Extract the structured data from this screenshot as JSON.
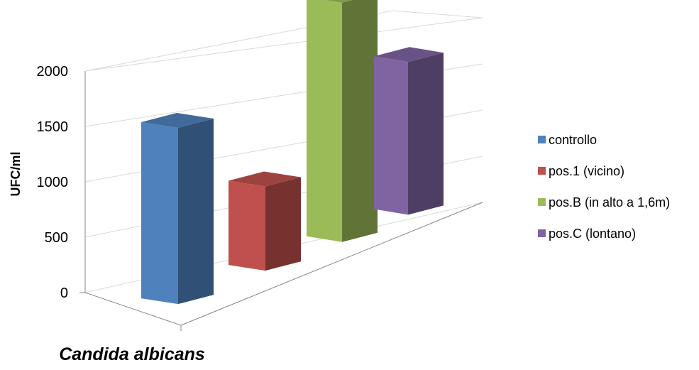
{
  "chart_data": {
    "type": "bar",
    "style": "3d-column",
    "categories": [
      "Candida albicans"
    ],
    "series": [
      {
        "name": "controllo",
        "values": [
          1590
        ],
        "color": "#4F81BD"
      },
      {
        "name": "pos.1 (vicino)",
        "values": [
          760
        ],
        "color": "#C0504D"
      },
      {
        "name": "pos.B (in alto a 1,6m)",
        "values": [
          2160
        ],
        "color": "#9BBB59"
      },
      {
        "name": "pos.C (lontano)",
        "values": [
          1380
        ],
        "color": "#8064A2"
      }
    ],
    "ylabel": "UFC/ml",
    "yticks": [
      "0",
      "500",
      "1000",
      "1500",
      "2000"
    ],
    "ylim": [
      0,
      2000
    ],
    "grid": true,
    "legend": "right"
  }
}
